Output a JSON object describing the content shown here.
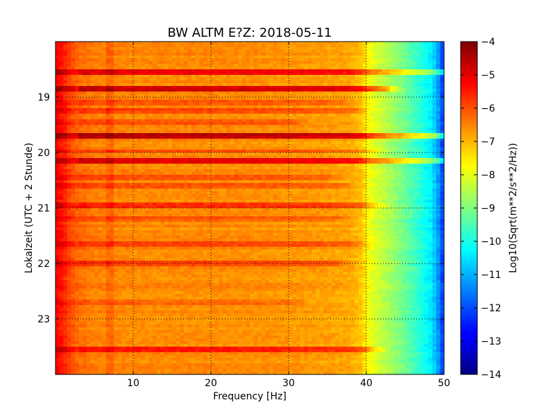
{
  "chart_data": {
    "type": "heatmap",
    "title": "BW ALTM E?Z: 2018-05-11",
    "xlabel": "Frequency [Hz]",
    "ylabel": "Lokalzeit (UTC + 2 Stunde)",
    "xlim": [
      0,
      50
    ],
    "ylim": [
      18,
      24
    ],
    "y_inverted": true,
    "x_ticks": [
      10,
      20,
      30,
      40,
      50
    ],
    "y_ticks": [
      19,
      20,
      21,
      22,
      23
    ],
    "grid": true,
    "colormap": "jet",
    "colorbar": {
      "label": "Log10(Sqrt(m**2/s**2/Hz))",
      "min": -14,
      "max": -4,
      "ticks": [
        -4,
        -5,
        -6,
        -7,
        -8,
        -9,
        -10,
        -11,
        -12,
        -13,
        -14
      ]
    },
    "frequency_profile": {
      "frequency_hz": [
        0,
        1,
        2,
        3,
        5,
        10,
        20,
        30,
        35,
        38,
        39.5,
        40,
        40.5,
        41.5,
        43,
        45,
        47,
        48.5,
        49.5,
        50
      ],
      "level": [
        -5.2,
        -5.5,
        -6.0,
        -6.3,
        -6.5,
        -6.6,
        -6.6,
        -6.7,
        -6.8,
        -6.9,
        -7.2,
        -7.6,
        -7.9,
        -8.2,
        -8.6,
        -9.2,
        -9.9,
        -10.5,
        -11.5,
        -12.5
      ]
    },
    "time_bands": [
      {
        "hour": 18.55,
        "delta": 1.5,
        "fmax": 50
      },
      {
        "hour": 18.85,
        "delta": 1.8,
        "fmax": 42
      },
      {
        "hour": 19.1,
        "delta": 0.5,
        "fmax": 36
      },
      {
        "hour": 19.25,
        "delta": 0.6,
        "fmax": 38
      },
      {
        "hour": 19.45,
        "delta": 0.5,
        "fmax": 30
      },
      {
        "hour": 19.7,
        "delta": 2.0,
        "fmax": 50
      },
      {
        "hour": 19.98,
        "delta": 0.6,
        "fmax": 40
      },
      {
        "hour": 20.15,
        "delta": 1.7,
        "fmax": 50
      },
      {
        "hour": 20.45,
        "delta": 0.5,
        "fmax": 35
      },
      {
        "hour": 20.6,
        "delta": 0.5,
        "fmax": 36
      },
      {
        "hour": 20.95,
        "delta": 0.9,
        "fmax": 40
      },
      {
        "hour": 21.2,
        "delta": 0.5,
        "fmax": 36
      },
      {
        "hour": 21.65,
        "delta": 0.6,
        "fmax": 38
      },
      {
        "hour": 22.0,
        "delta": 0.7,
        "fmax": 36
      },
      {
        "hour": 22.7,
        "delta": 0.4,
        "fmax": 30
      },
      {
        "hour": 23.55,
        "delta": 1.2,
        "fmax": 40
      }
    ]
  }
}
